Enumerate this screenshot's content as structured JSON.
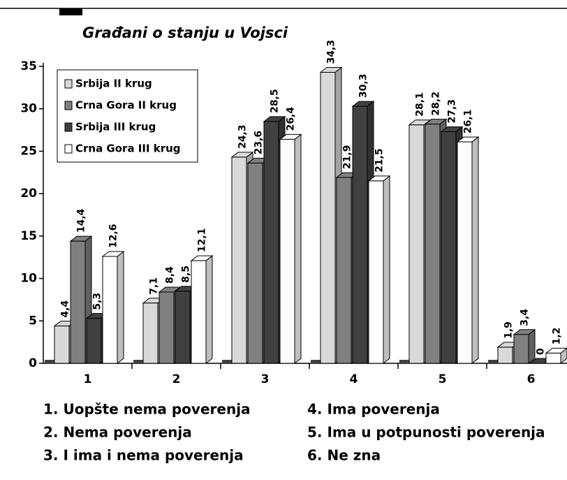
{
  "chart_data": {
    "type": "bar",
    "title": "Građani o stanju u Vojsci",
    "categories": [
      "1",
      "2",
      "3",
      "4",
      "5",
      "6"
    ],
    "series": [
      {
        "name": "Srbija II krug",
        "color": "#d9d9d9",
        "values": [
          4.4,
          7.1,
          24.3,
          34.3,
          28.1,
          1.9
        ],
        "value_labels": [
          "4,4",
          "7,1",
          "24,3",
          "34,3",
          "28,1",
          "1,9"
        ]
      },
      {
        "name": "Crna Gora II krug",
        "color": "#808080",
        "values": [
          14.4,
          8.4,
          23.6,
          21.9,
          28.2,
          3.4
        ],
        "value_labels": [
          "14,4",
          "8,4",
          "23,6",
          "21,9",
          "28,2",
          "3,4"
        ]
      },
      {
        "name": "Srbija III krug",
        "color": "#404040",
        "values": [
          5.3,
          8.5,
          28.5,
          30.3,
          27.3,
          0
        ],
        "value_labels": [
          "5,3",
          "8,5",
          "28,5",
          "30,3",
          "27,3",
          "0"
        ]
      },
      {
        "name": "Crna Gora III krug",
        "color": "#ffffff",
        "values": [
          12.6,
          12.1,
          26.4,
          21.5,
          26.1,
          1.2
        ],
        "value_labels": [
          "12,6",
          "12,1",
          "26,4",
          "21,5",
          "26,1",
          "1,2"
        ]
      }
    ],
    "ylim": [
      0,
      35
    ],
    "yticks": [
      0,
      5,
      10,
      15,
      20,
      25,
      30,
      35
    ],
    "notes": [
      "1. Uopšte nema poverenja",
      "2. Nema poverenja",
      "3. I ima i nema poverenja",
      "4. Ima poverenja",
      "5. Ima u potpunosti poverenja",
      "6. Ne zna"
    ]
  }
}
